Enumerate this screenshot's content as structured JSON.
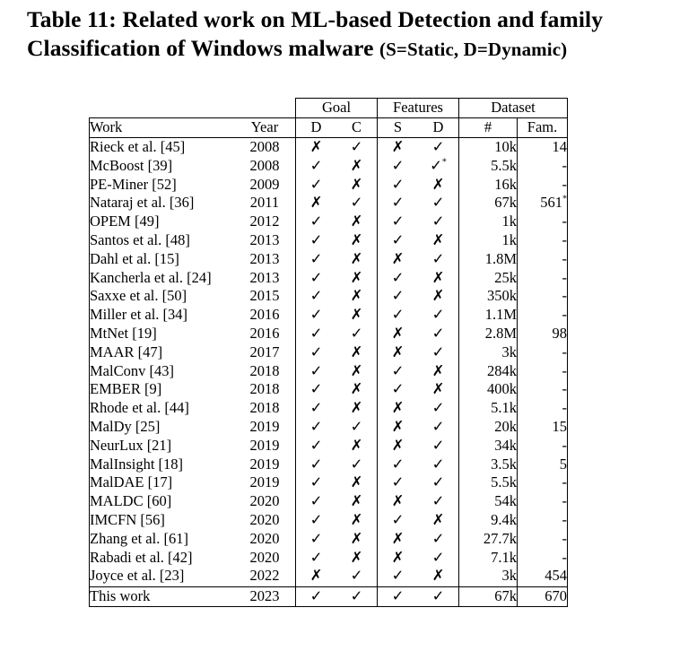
{
  "caption": {
    "line1": "Table 11: Related work on ML-based Detection and family",
    "line2": "Classification of Windows malware",
    "paren": "(S=Static, D=Dynamic)"
  },
  "groups": {
    "goal": "Goal",
    "features": "Features",
    "dataset": "Dataset"
  },
  "headers": [
    "Work",
    "Year",
    "D",
    "C",
    "S",
    "D",
    "#",
    "Fam."
  ],
  "rows": [
    {
      "work": "Rieck et al. [45]",
      "year": "2008",
      "gd": "✗",
      "gc": "✓",
      "fs": "✗",
      "fd": "✓",
      "num": "10k",
      "fam": "14"
    },
    {
      "work": "McBoost [39]",
      "year": "2008",
      "gd": "✓",
      "gc": "✗",
      "fs": "✓",
      "fd": "✓*",
      "num": "5.5k",
      "fam": "-"
    },
    {
      "work": "PE-Miner [52]",
      "year": "2009",
      "gd": "✓",
      "gc": "✗",
      "fs": "✓",
      "fd": "✗",
      "num": "16k",
      "fam": "-"
    },
    {
      "work": "Nataraj et al. [36]",
      "year": "2011",
      "gd": "✗",
      "gc": "✓",
      "fs": "✓",
      "fd": "✓",
      "num": "67k",
      "fam": "561*"
    },
    {
      "work": "OPEM [49]",
      "year": "2012",
      "gd": "✓",
      "gc": "✗",
      "fs": "✓",
      "fd": "✓",
      "num": "1k",
      "fam": "-"
    },
    {
      "work": "Santos et al. [48]",
      "year": "2013",
      "gd": "✓",
      "gc": "✗",
      "fs": "✓",
      "fd": "✗",
      "num": "1k",
      "fam": "-"
    },
    {
      "work": "Dahl et al. [15]",
      "year": "2013",
      "gd": "✓",
      "gc": "✗",
      "fs": "✗",
      "fd": "✓",
      "num": "1.8M",
      "fam": "-"
    },
    {
      "work": "Kancherla et al. [24]",
      "year": "2013",
      "gd": "✓",
      "gc": "✗",
      "fs": "✓",
      "fd": "✗",
      "num": "25k",
      "fam": "-"
    },
    {
      "work": "Saxxe et al. [50]",
      "year": "2015",
      "gd": "✓",
      "gc": "✗",
      "fs": "✓",
      "fd": "✗",
      "num": "350k",
      "fam": "-"
    },
    {
      "work": "Miller et al. [34]",
      "year": "2016",
      "gd": "✓",
      "gc": "✗",
      "fs": "✓",
      "fd": "✓",
      "num": "1.1M",
      "fam": "-"
    },
    {
      "work": "MtNet [19]",
      "year": "2016",
      "gd": "✓",
      "gc": "✓",
      "fs": "✗",
      "fd": "✓",
      "num": "2.8M",
      "fam": "98"
    },
    {
      "work": "MAAR [47]",
      "year": "2017",
      "gd": "✓",
      "gc": "✗",
      "fs": "✗",
      "fd": "✓",
      "num": "3k",
      "fam": "-"
    },
    {
      "work": "MalConv [43]",
      "year": "2018",
      "gd": "✓",
      "gc": "✗",
      "fs": "✓",
      "fd": "✗",
      "num": "284k",
      "fam": "-"
    },
    {
      "work": "EMBER [9]",
      "year": "2018",
      "gd": "✓",
      "gc": "✗",
      "fs": "✓",
      "fd": "✗",
      "num": "400k",
      "fam": "-"
    },
    {
      "work": "Rhode et al. [44]",
      "year": "2018",
      "gd": "✓",
      "gc": "✗",
      "fs": "✗",
      "fd": "✓",
      "num": "5.1k",
      "fam": "-"
    },
    {
      "work": "MalDy [25]",
      "year": "2019",
      "gd": "✓",
      "gc": "✓",
      "fs": "✗",
      "fd": "✓",
      "num": "20k",
      "fam": "15"
    },
    {
      "work": "NeurLux [21]",
      "year": "2019",
      "gd": "✓",
      "gc": "✗",
      "fs": "✗",
      "fd": "✓",
      "num": "34k",
      "fam": "-"
    },
    {
      "work": "MalInsight [18]",
      "year": "2019",
      "gd": "✓",
      "gc": "✓",
      "fs": "✓",
      "fd": "✓",
      "num": "3.5k",
      "fam": "5"
    },
    {
      "work": "MalDAE [17]",
      "year": "2019",
      "gd": "✓",
      "gc": "✗",
      "fs": "✓",
      "fd": "✓",
      "num": "5.5k",
      "fam": "-"
    },
    {
      "work": "MALDC [60]",
      "year": "2020",
      "gd": "✓",
      "gc": "✗",
      "fs": "✗",
      "fd": "✓",
      "num": "54k",
      "fam": "-"
    },
    {
      "work": "IMCFN [56]",
      "year": "2020",
      "gd": "✓",
      "gc": "✗",
      "fs": "✓",
      "fd": "✗",
      "num": "9.4k",
      "fam": "-"
    },
    {
      "work": "Zhang et al. [61]",
      "year": "2020",
      "gd": "✓",
      "gc": "✗",
      "fs": "✗",
      "fd": "✓",
      "num": "27.7k",
      "fam": "-"
    },
    {
      "work": "Rabadi et al. [42]",
      "year": "2020",
      "gd": "✓",
      "gc": "✗",
      "fs": "✗",
      "fd": "✓",
      "num": "7.1k",
      "fam": "-"
    },
    {
      "work": "Joyce et al. [23]",
      "year": "2022",
      "gd": "✗",
      "gc": "✓",
      "fs": "✓",
      "fd": "✗",
      "num": "3k",
      "fam": "454"
    },
    {
      "work": "This work",
      "year": "2023",
      "gd": "✓",
      "gc": "✓",
      "fs": "✓",
      "fd": "✓",
      "num": "67k",
      "fam": "670"
    }
  ]
}
